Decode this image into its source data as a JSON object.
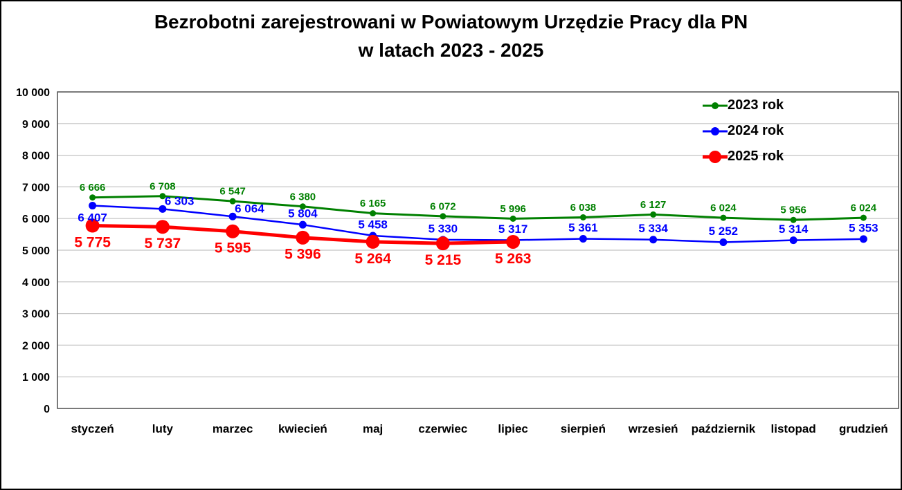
{
  "title": {
    "line1": "Bezrobotni zarejestrowani w Powiatowym Urzędzie Pracy dla PN",
    "line2": "w latach 2023 - 2025"
  },
  "chart_data": {
    "type": "line",
    "title": "Bezrobotni zarejestrowani w Powiatowym Urzędzie Pracy dla PN w latach 2023 - 2025",
    "categories": [
      "styczeń",
      "luty",
      "marzec",
      "kwiecień",
      "maj",
      "czerwiec",
      "lipiec",
      "sierpień",
      "wrzesień",
      "październik",
      "listopad",
      "grudzień"
    ],
    "series": [
      {
        "name": "2023 rok",
        "color": "#008000",
        "values": [
          6666,
          6708,
          6547,
          6380,
          6165,
          6072,
          5996,
          6038,
          6127,
          6024,
          5956,
          6024
        ],
        "label_position": "above",
        "label_position_overrides": {}
      },
      {
        "name": "2024 rok",
        "color": "#0000FF",
        "values": [
          6407,
          6303,
          6064,
          5804,
          5458,
          5330,
          5317,
          5361,
          5334,
          5252,
          5314,
          5353
        ],
        "label_position": "above",
        "label_position_overrides": {
          "0": "below",
          "1": "right-above",
          "2": "right-above"
        }
      },
      {
        "name": "2025 rok",
        "color": "#FF0000",
        "values": [
          5775,
          5737,
          5595,
          5396,
          5264,
          5215,
          5263
        ],
        "label_position": "below",
        "label_position_overrides": {}
      }
    ],
    "xlabel": "",
    "ylabel": "",
    "ylim": [
      0,
      10000
    ],
    "ytick_step": 1000,
    "grid": true,
    "legend_position": "top-right",
    "colors": {
      "gridline": "#C3C3C3",
      "plot_border": "#595959",
      "axis_text": "#000000",
      "background": "#FFFFFF",
      "outer_border": "#000000"
    }
  }
}
